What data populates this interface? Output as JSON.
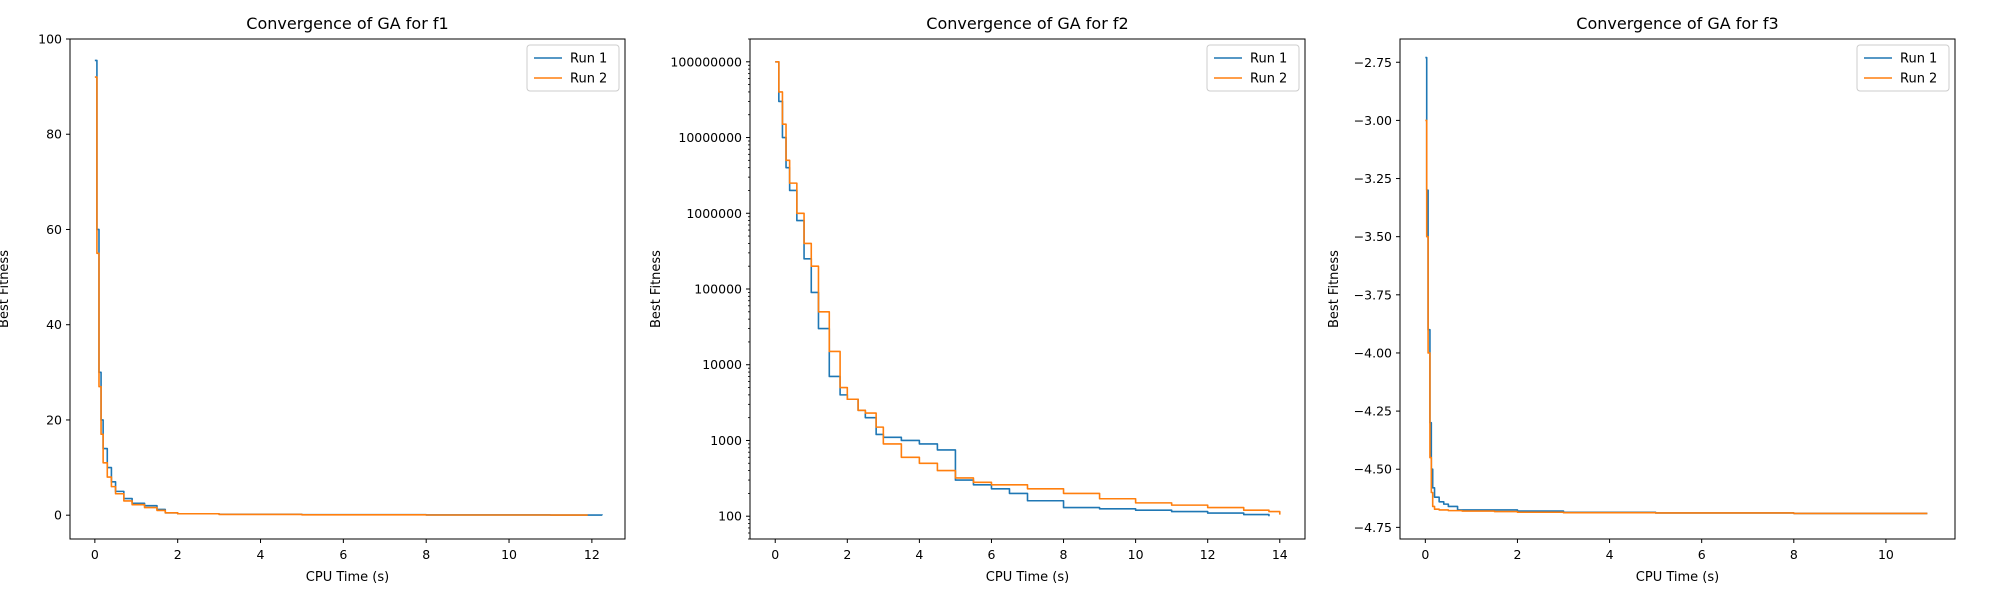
{
  "colors": {
    "run1": "#1f77b4",
    "run2": "#ff7f0e"
  },
  "chart_data": [
    {
      "type": "line",
      "title": "Convergence of GA for f1",
      "xlabel": "CPU Time (s)",
      "ylabel": "Best Fitness",
      "xlim": [
        -0.6,
        12.8
      ],
      "ylim": [
        -5,
        100
      ],
      "yscale": "linear",
      "xticks": [
        0,
        2,
        4,
        6,
        8,
        10,
        12
      ],
      "xtick_labels": [
        "0",
        "2",
        "4",
        "6",
        "8",
        "10",
        "12"
      ],
      "yticks": [
        0,
        20,
        40,
        60,
        80,
        100
      ],
      "ytick_labels": [
        "0",
        "20",
        "40",
        "60",
        "80",
        "100"
      ],
      "grid": false,
      "legend": "top-right",
      "series": [
        {
          "name": "Run 1",
          "x": [
            0,
            0.05,
            0.1,
            0.15,
            0.2,
            0.3,
            0.4,
            0.5,
            0.7,
            0.9,
            1.2,
            1.5,
            1.7,
            2.0,
            3.0,
            5.0,
            8.0,
            11.0,
            12.25
          ],
          "y": [
            95.5,
            60,
            30,
            20,
            14,
            10,
            7,
            5,
            3.5,
            2.5,
            2.0,
            1.2,
            0.5,
            0.3,
            0.2,
            0.1,
            0.05,
            0.03,
            0.02
          ]
        },
        {
          "name": "Run 2",
          "x": [
            0,
            0.05,
            0.1,
            0.15,
            0.2,
            0.3,
            0.4,
            0.5,
            0.7,
            0.9,
            1.2,
            1.5,
            1.7,
            2.0,
            3.0,
            5.0,
            8.0,
            11.0,
            11.9
          ],
          "y": [
            92,
            55,
            27,
            17,
            11,
            8,
            6,
            4.5,
            3.0,
            2.2,
            1.6,
            1.0,
            0.5,
            0.3,
            0.15,
            0.08,
            0.04,
            0.02,
            0.02
          ]
        }
      ]
    },
    {
      "type": "line",
      "title": "Convergence of GA for f2",
      "xlabel": "CPU Time (s)",
      "ylabel": "Best Fitness",
      "xlim": [
        -0.7,
        14.7
      ],
      "ylim": [
        50,
        200000000
      ],
      "yscale": "log",
      "xticks": [
        0,
        2,
        4,
        6,
        8,
        10,
        12,
        14
      ],
      "xtick_labels": [
        "0",
        "2",
        "4",
        "6",
        "8",
        "10",
        "12",
        "14"
      ],
      "yticks": [
        100,
        1000,
        10000,
        100000,
        1000000,
        10000000,
        100000000
      ],
      "ytick_labels": [
        "100",
        "1000",
        "10000",
        "100000",
        "1000000",
        "10000000",
        "100000000"
      ],
      "grid": false,
      "legend": "top-right",
      "series": [
        {
          "name": "Run 1",
          "x": [
            0,
            0.1,
            0.2,
            0.3,
            0.4,
            0.6,
            0.8,
            1.0,
            1.2,
            1.5,
            1.8,
            2.0,
            2.3,
            2.5,
            2.8,
            3.0,
            3.5,
            4.0,
            4.5,
            5.0,
            5.5,
            6.0,
            6.5,
            7.0,
            8.0,
            9.0,
            10.0,
            11.0,
            12.0,
            13.0,
            13.7
          ],
          "y": [
            100000000,
            30000000,
            10000000,
            4000000,
            2000000,
            800000,
            250000,
            90000,
            30000,
            7000,
            4000,
            3500,
            2500,
            2000,
            1200,
            1100,
            1000,
            900,
            750,
            300,
            260,
            230,
            200,
            160,
            130,
            125,
            120,
            115,
            110,
            105,
            100
          ]
        },
        {
          "name": "Run 2",
          "x": [
            0,
            0.1,
            0.2,
            0.3,
            0.4,
            0.6,
            0.8,
            1.0,
            1.2,
            1.5,
            1.8,
            2.0,
            2.3,
            2.5,
            2.8,
            3.0,
            3.5,
            4.0,
            4.5,
            5.0,
            5.5,
            6.0,
            7.0,
            8.0,
            9.0,
            10.0,
            11.0,
            12.0,
            13.0,
            13.7,
            14.0
          ],
          "y": [
            100000000,
            40000000,
            15000000,
            5000000,
            2500000,
            1000000,
            400000,
            200000,
            50000,
            15000,
            5000,
            3500,
            2500,
            2300,
            1500,
            900,
            600,
            500,
            400,
            320,
            280,
            260,
            230,
            200,
            170,
            150,
            140,
            130,
            120,
            115,
            105
          ]
        }
      ]
    },
    {
      "type": "line",
      "title": "Convergence of GA for f3",
      "xlabel": "CPU Time (s)",
      "ylabel": "Best Fitness",
      "xlim": [
        -0.55,
        11.5
      ],
      "ylim": [
        -4.8,
        -2.65
      ],
      "yscale": "linear",
      "xticks": [
        0,
        2,
        4,
        6,
        8,
        10
      ],
      "xtick_labels": [
        "0",
        "2",
        "4",
        "6",
        "8",
        "10"
      ],
      "yticks": [
        -4.75,
        -4.5,
        -4.25,
        -4.0,
        -3.75,
        -3.5,
        -3.25,
        -3.0,
        -2.75
      ],
      "ytick_labels": [
        "−4.75",
        "−4.50",
        "−4.25",
        "−4.00",
        "−3.75",
        "−3.50",
        "−3.25",
        "−3.00",
        "−2.75"
      ],
      "grid": false,
      "legend": "top-right",
      "series": [
        {
          "name": "Run 1",
          "x": [
            0,
            0.03,
            0.06,
            0.1,
            0.13,
            0.16,
            0.2,
            0.3,
            0.4,
            0.5,
            0.7,
            1.0,
            1.5,
            2.0,
            3.0,
            5.0,
            8.0,
            10.0,
            10.9
          ],
          "y": [
            -2.73,
            -3.3,
            -3.9,
            -4.3,
            -4.5,
            -4.58,
            -4.62,
            -4.64,
            -4.65,
            -4.66,
            -4.675,
            -4.675,
            -4.675,
            -4.68,
            -4.685,
            -4.688,
            -4.69,
            -4.69,
            -4.69
          ]
        },
        {
          "name": "Run 2",
          "x": [
            0,
            0.03,
            0.06,
            0.1,
            0.13,
            0.16,
            0.2,
            0.3,
            0.5,
            0.8,
            1.5,
            2.0,
            3.0,
            5.0,
            8.0,
            10.0,
            10.9
          ],
          "y": [
            -3.0,
            -3.5,
            -4.0,
            -4.45,
            -4.6,
            -4.66,
            -4.672,
            -4.675,
            -4.678,
            -4.68,
            -4.682,
            -4.685,
            -4.687,
            -4.688,
            -4.69,
            -4.69,
            -4.69
          ]
        }
      ]
    }
  ]
}
